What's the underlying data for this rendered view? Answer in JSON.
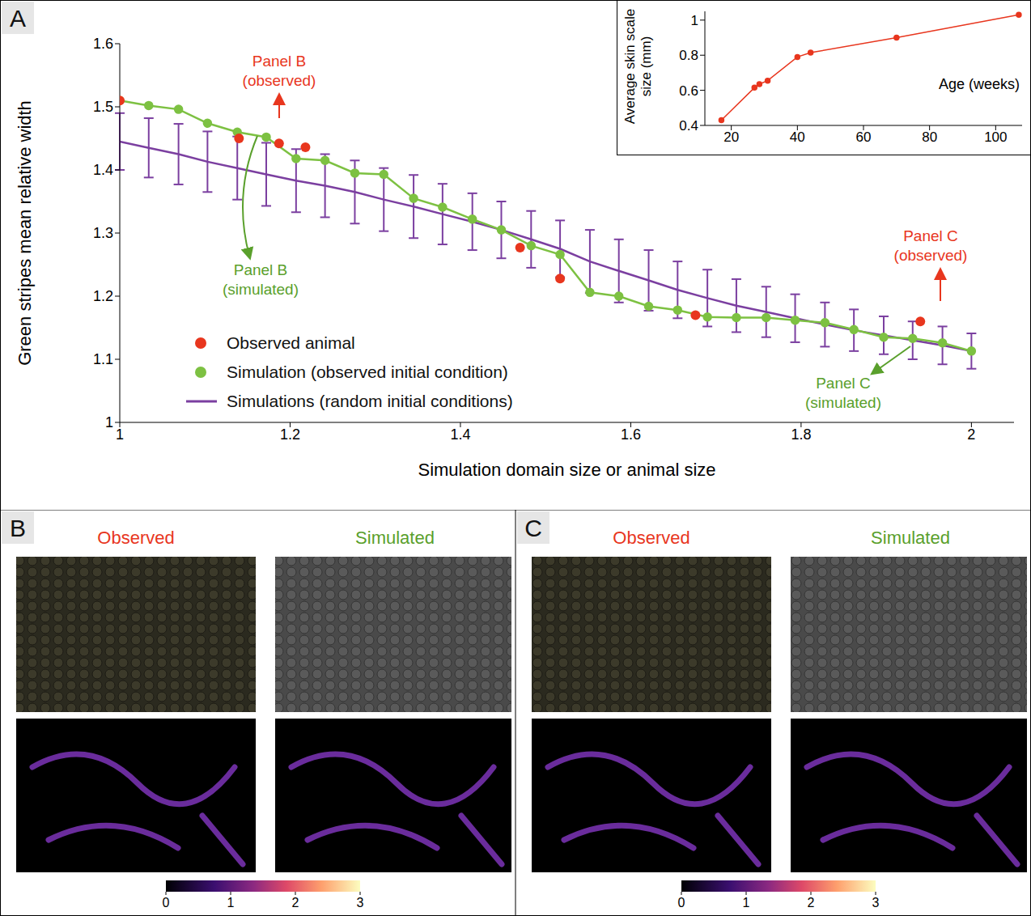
{
  "chart_data": [
    {
      "type": "line",
      "xlabel": "Simulation domain size or animal size",
      "ylabel": "Green stripes mean relative width",
      "x": [
        1,
        1.034,
        1.069,
        1.103,
        1.138,
        1.172,
        1.207,
        1.241,
        1.276,
        1.31,
        1.345,
        1.379,
        1.414,
        1.448,
        1.483,
        1.517,
        1.552,
        1.586,
        1.621,
        1.655,
        1.69,
        1.724,
        1.759,
        1.793,
        1.828,
        1.862,
        1.897,
        1.931,
        1.966,
        2
      ],
      "xlim": [
        1,
        2.05
      ],
      "ylim": [
        1,
        1.6
      ],
      "xticks": [
        1,
        1.2,
        1.4,
        1.6,
        1.8,
        2
      ],
      "yticks": [
        1,
        1.1,
        1.2,
        1.3,
        1.4,
        1.5,
        1.6
      ],
      "legend": "lower left",
      "series": [
        {
          "name": "Observed animal",
          "type": "scatter",
          "color": "#e8361e",
          "marker": "circle",
          "x": [
            1,
            1.14,
            1.187,
            1.218,
            1.47,
            1.517,
            1.676,
            1.94
          ],
          "values": [
            1.51,
            1.45,
            1.442,
            1.436,
            1.277,
            1.228,
            1.17,
            1.16
          ]
        },
        {
          "name": "Simulation (observed initial condition)",
          "type": "line",
          "color": "#7dc142",
          "marker": "circle",
          "values": [
            1.51,
            1.502,
            1.496,
            1.474,
            1.46,
            1.452,
            1.418,
            1.415,
            1.395,
            1.393,
            1.355,
            1.341,
            1.322,
            1.305,
            1.28,
            1.266,
            1.206,
            1.2,
            1.184,
            1.178,
            1.167,
            1.166,
            1.166,
            1.162,
            1.158,
            1.147,
            1.135,
            1.133,
            1.126,
            1.113
          ]
        },
        {
          "name": "Simulations (random initial conditions)",
          "type": "line",
          "color": "#7b3fa0",
          "marker": "none",
          "values": [
            1.445,
            1.435,
            1.425,
            1.413,
            1.403,
            1.393,
            1.383,
            1.375,
            1.365,
            1.353,
            1.342,
            1.33,
            1.318,
            1.305,
            1.29,
            1.275,
            1.255,
            1.24,
            1.225,
            1.21,
            1.197,
            1.185,
            1.175,
            1.165,
            1.155,
            1.146,
            1.138,
            1.13,
            1.122,
            1.113
          ],
          "error": [
            0.045,
            0.047,
            0.048,
            0.048,
            0.05,
            0.05,
            0.05,
            0.05,
            0.05,
            0.05,
            0.05,
            0.048,
            0.045,
            0.045,
            0.045,
            0.045,
            0.05,
            0.05,
            0.048,
            0.045,
            0.045,
            0.042,
            0.04,
            0.038,
            0.035,
            0.033,
            0.03,
            0.03,
            0.03,
            0.028
          ]
        }
      ],
      "annotations": [
        {
          "text": [
            "Panel B",
            "(observed)"
          ],
          "color": "#e8361e"
        },
        {
          "text": [
            "Panel B",
            "(simulated)"
          ],
          "color": "#5aa02c"
        },
        {
          "text": [
            "Panel C",
            "(observed)"
          ],
          "color": "#e8361e"
        },
        {
          "text": [
            "Panel C",
            "(simulated)"
          ],
          "color": "#5aa02c"
        }
      ]
    },
    {
      "type": "line",
      "xlabel": "Age (weeks)",
      "ylabel": "Average skin scale size (mm)",
      "x": [
        17,
        27,
        28.5,
        31,
        40,
        44,
        70,
        107
      ],
      "values": [
        0.43,
        0.615,
        0.635,
        0.655,
        0.79,
        0.815,
        0.9,
        1.03
      ],
      "color": "#e8361e",
      "marker": "circle",
      "xlim": [
        12,
        108
      ],
      "ylim": [
        0.4,
        1.05
      ],
      "xticks": [
        20,
        40,
        60,
        80,
        100
      ],
      "yticks": [
        0.4,
        0.6,
        0.8,
        1
      ]
    }
  ],
  "panels": [
    {
      "letter": "A"
    },
    {
      "letter": "B",
      "titles": [
        "Observed",
        "Simulated"
      ],
      "colorbar": {
        "range": [
          0,
          3
        ],
        "ticks": [
          0,
          1,
          2,
          3
        ]
      }
    },
    {
      "letter": "C",
      "titles": [
        "Observed",
        "Simulated"
      ],
      "colorbar": {
        "range": [
          0,
          3
        ],
        "ticks": [
          0,
          1,
          2,
          3
        ]
      }
    }
  ]
}
